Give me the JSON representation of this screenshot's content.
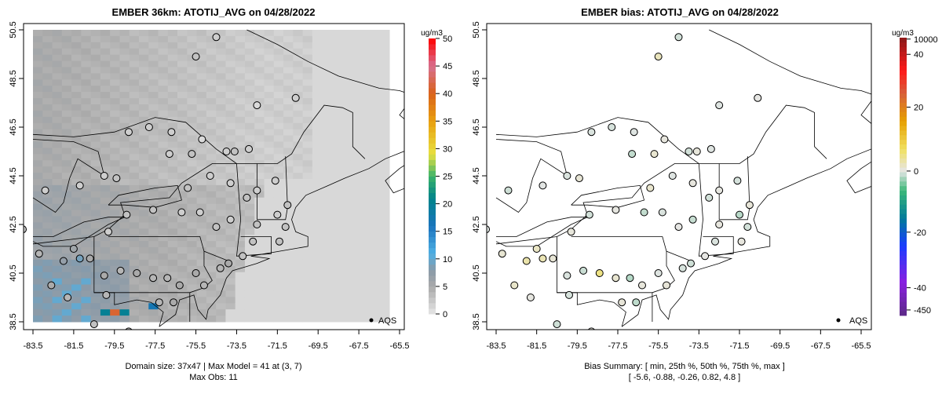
{
  "chart_data": [
    {
      "type": "heatmap",
      "title": "EMBER 36km: ATOTIJ_AVG on 04/28/2022",
      "units": "ug/m3",
      "colorbar_ticks": [
        "0",
        "5",
        "10",
        "15",
        "20",
        "25",
        "30",
        "35",
        "40",
        "45",
        "50"
      ],
      "colorbar_range": [
        0,
        50
      ],
      "x_ticks": [
        "-83.5",
        "-81.5",
        "-79.5",
        "-77.5",
        "-75.5",
        "-73.5",
        "-71.5",
        "-69.5",
        "-67.5",
        "-65.5"
      ],
      "y_ticks": [
        "38.5",
        "40.5",
        "42.5",
        "44.5",
        "46.5",
        "48.5",
        "50.5"
      ],
      "xlim": [
        -83.5,
        -65.5
      ],
      "ylim": [
        38.5,
        50.5
      ],
      "legend": "AQS",
      "legend_position": "bottom-right",
      "footer_line1": "Domain size: 37x47 | Max Model = 41 at (3, 7)",
      "footer_line2": "Max Obs: 11"
    },
    {
      "type": "scatter",
      "title": "EMBER bias: ATOTIJ_AVG on 04/28/2022",
      "units": "ug/m3",
      "colorbar_ticks": [
        "-450",
        "-40",
        "-20",
        "0",
        "20",
        "40",
        "10000"
      ],
      "x_ticks": [
        "-83.5",
        "-81.5",
        "-79.5",
        "-77.5",
        "-75.5",
        "-73.5",
        "-71.5",
        "-69.5",
        "-67.5",
        "-65.5"
      ],
      "y_ticks": [
        "38.5",
        "40.5",
        "42.5",
        "44.5",
        "46.5",
        "48.5",
        "50.5"
      ],
      "xlim": [
        -83.5,
        -65.5
      ],
      "ylim": [
        38.5,
        50.5
      ],
      "legend": "AQS",
      "legend_position": "bottom-right",
      "footer_line1": "Bias Summary: [ min, 25th %, 50th %, 75th %, max ]",
      "footer_line2": "[ -5.6,   -0.88,   -0.26,   0.82,   4.8 ]",
      "bias_summary": {
        "min": -5.6,
        "p25": -0.88,
        "p50": -0.26,
        "p75": 0.82,
        "max": 4.8
      }
    }
  ],
  "stations": [
    [
      -74.5,
      50.2,
      2,
      -0.5
    ],
    [
      -75.5,
      49.4,
      3,
      1.5
    ],
    [
      -72.5,
      47.4,
      1,
      -0.2
    ],
    [
      -70.6,
      47.7,
      2,
      0.1
    ],
    [
      -78.8,
      46.3,
      2,
      -0.3
    ],
    [
      -77.8,
      46.5,
      2,
      -0.4
    ],
    [
      -76.7,
      46.3,
      2,
      -0.2
    ],
    [
      -75.2,
      46.0,
      1,
      0.3
    ],
    [
      -76.8,
      45.4,
      2,
      -0.9
    ],
    [
      -75.7,
      45.4,
      3,
      0.8
    ],
    [
      -74.0,
      45.5,
      2,
      -0.5
    ],
    [
      -73.6,
      45.5,
      3,
      0.4
    ],
    [
      -72.9,
      45.6,
      2,
      -0.2
    ],
    [
      -79.4,
      44.4,
      3,
      0.6
    ],
    [
      -80.0,
      44.5,
      2,
      -0.3
    ],
    [
      -81.2,
      44.1,
      2,
      -0.1
    ],
    [
      -82.9,
      43.9,
      2,
      -0.6
    ],
    [
      -75.9,
      44.0,
      3,
      0.9
    ],
    [
      -74.8,
      44.5,
      2,
      -0.2
    ],
    [
      -73.8,
      44.2,
      2,
      0.3
    ],
    [
      -73.0,
      43.6,
      3,
      -0.5
    ],
    [
      -72.5,
      43.9,
      2,
      0.2
    ],
    [
      -71.6,
      44.3,
      2,
      -0.4
    ],
    [
      -71.0,
      43.3,
      3,
      0.5
    ],
    [
      -71.5,
      42.9,
      2,
      -1.1
    ],
    [
      -72.5,
      42.5,
      3,
      0.3
    ],
    [
      -73.8,
      42.7,
      2,
      -0.8
    ],
    [
      -74.5,
      42.4,
      3,
      0.1
    ],
    [
      -75.3,
      43.0,
      2,
      -0.3
    ],
    [
      -76.2,
      43.0,
      2,
      -0.9
    ],
    [
      -77.6,
      43.1,
      3,
      0.2
    ],
    [
      -78.9,
      42.9,
      3,
      -0.5
    ],
    [
      -79.8,
      42.2,
      2,
      0.4
    ],
    [
      -81.5,
      41.5,
      6,
      1.2
    ],
    [
      -82.0,
      41.0,
      7,
      2.1
    ],
    [
      -81.2,
      41.1,
      9,
      1.8
    ],
    [
      -80.7,
      41.1,
      5,
      0.6
    ],
    [
      -80.0,
      40.4,
      5,
      -0.3
    ],
    [
      -79.2,
      40.6,
      4,
      -0.7
    ],
    [
      -78.4,
      40.5,
      5,
      3.5
    ],
    [
      -77.6,
      40.3,
      4,
      0.8
    ],
    [
      -76.9,
      40.3,
      4,
      -1.2
    ],
    [
      -76.3,
      40.0,
      5,
      0.4
    ],
    [
      -75.5,
      40.5,
      5,
      -0.2
    ],
    [
      -75.1,
      40.0,
      4,
      0.5
    ],
    [
      -74.3,
      40.7,
      4,
      -0.4
    ],
    [
      -73.9,
      40.9,
      5,
      -0.6
    ],
    [
      -73.2,
      41.2,
      3,
      0.1
    ],
    [
      -72.7,
      41.8,
      3,
      -0.3
    ],
    [
      -71.4,
      41.8,
      3,
      0.3
    ],
    [
      -71.1,
      42.4,
      3,
      -0.5
    ],
    [
      -82.6,
      40.0,
      5,
      1.0
    ],
    [
      -83.2,
      41.3,
      4,
      0.7
    ],
    [
      -84.0,
      42.3,
      3,
      -0.2
    ],
    [
      -81.8,
      39.5,
      4,
      0.2
    ],
    [
      -79.9,
      39.6,
      4,
      -0.4
    ],
    [
      -77.3,
      39.3,
      4,
      0.5
    ],
    [
      -76.6,
      39.3,
      5,
      -1.0
    ],
    [
      -78.8,
      38.1,
      3,
      0.3
    ],
    [
      -80.5,
      38.4,
      3,
      -0.6
    ]
  ],
  "colors": {
    "bg": "#ffffff",
    "axis": "#000000"
  }
}
